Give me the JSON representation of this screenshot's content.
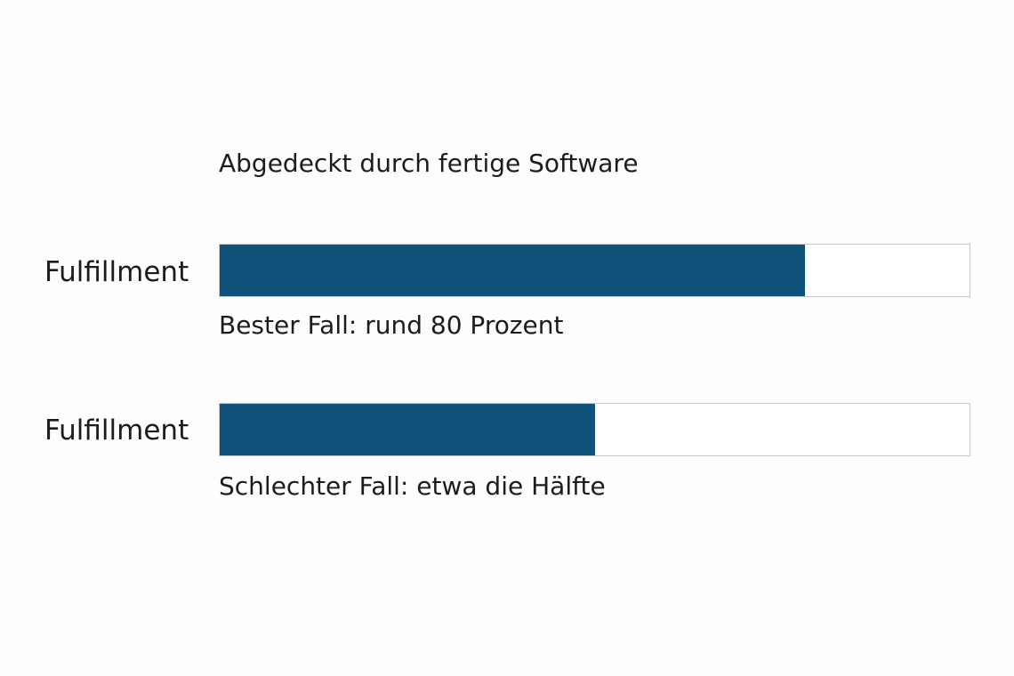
{
  "chart_data": {
    "type": "bar",
    "title": "Abgedeckt durch fertige Software",
    "categories": [
      "Fulfillment",
      "Fulfillment"
    ],
    "values": [
      0.78,
      0.5
    ],
    "xlim": [
      0,
      1
    ],
    "captions": [
      "Bester Fall: rund 80 Prozent",
      "Schlechter Fall: etwa die Hälfte"
    ],
    "bar_color": "#11527a",
    "track_color": "#ffffff",
    "grid": false
  }
}
